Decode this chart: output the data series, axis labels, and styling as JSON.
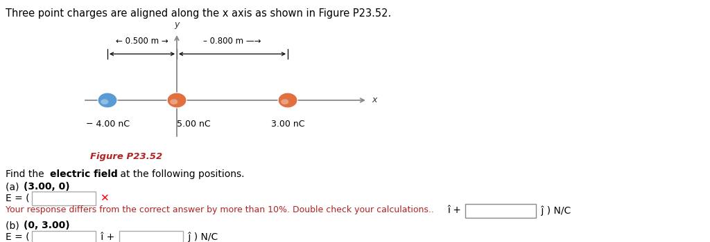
{
  "title_text": "Three point charges are aligned along the x axis as shown in Figure P23.52.",
  "title_color": "#000000",
  "title_fontsize": 10.5,
  "fig_label": "Figure P23.52",
  "fig_label_color": "#b22222",
  "charges": [
    {
      "label": "− 4.00 nC",
      "color": "#5b9bd5"
    },
    {
      "label": "5.00 nC",
      "color": "#e07040"
    },
    {
      "label": "3.00 nC",
      "color": "#e07040"
    }
  ],
  "error_msg": "Your response differs from the correct answer by more than 10%. Double check your calculations.",
  "error_color": "#b22222",
  "text_color": "#000000",
  "bg_color": "#ffffff"
}
